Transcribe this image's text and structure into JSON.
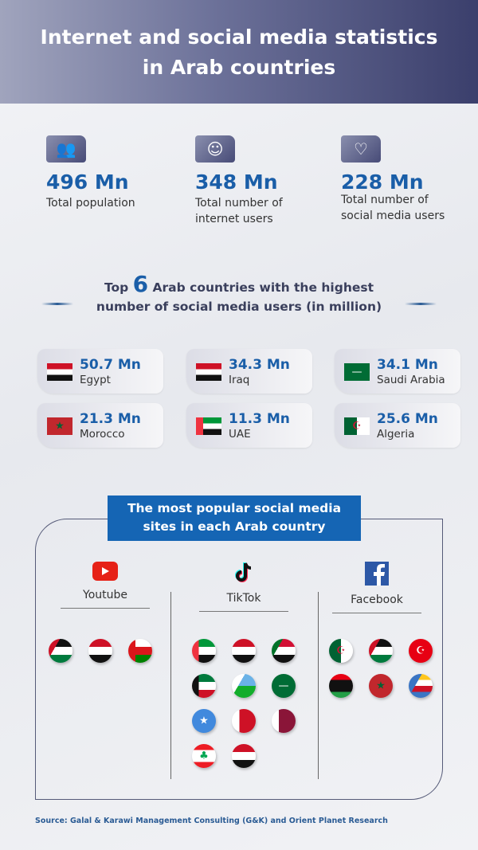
{
  "header": {
    "title_line1": "Internet and social media statistics",
    "title_line2": "in Arab countries"
  },
  "stats": [
    {
      "icon": "people-icon",
      "value": "496 Mn",
      "label_line1": "Total population",
      "label_line2": ""
    },
    {
      "icon": "laptop-user-icon",
      "value": "348 Mn",
      "label_line1": "Total number of",
      "label_line2": "internet users"
    },
    {
      "icon": "phone-like-icon",
      "value": "228 Mn",
      "label_line1": "Total number of",
      "label_line2": "social media users"
    }
  ],
  "top6": {
    "prefix": "Top",
    "number": "6",
    "line1_rest": "Arab countries with the highest",
    "line2": "number of social media users (in million)"
  },
  "countries": [
    {
      "flag": "egypt",
      "value": "50.7 Mn",
      "name": "Egypt"
    },
    {
      "flag": "iraq",
      "value": "34.3 Mn",
      "name": "Iraq"
    },
    {
      "flag": "saudi-arabia",
      "value": "34.1 Mn",
      "name": "Saudi Arabia"
    },
    {
      "flag": "morocco",
      "value": "21.3 Mn",
      "name": "Morocco"
    },
    {
      "flag": "uae",
      "value": "11.3 Mn",
      "name": "UAE"
    },
    {
      "flag": "algeria",
      "value": "25.6 Mn",
      "name": "Algeria"
    }
  ],
  "popular": {
    "title_line1": "The most popular social media",
    "title_line2": "sites in each Arab country",
    "platforms": [
      {
        "name": "Youtube",
        "icon": "youtube-icon",
        "flags": [
          "jordan",
          "egypt",
          "oman"
        ]
      },
      {
        "name": "TikTok",
        "icon": "tiktok-icon",
        "flags": [
          "uae",
          "iraq",
          "sudan",
          "kuwait",
          "djibouti",
          "saudi-arabia",
          "somalia",
          "bahrain",
          "qatar",
          "lebanon",
          "yemen"
        ]
      },
      {
        "name": "Facebook",
        "icon": "facebook-icon",
        "flags": [
          "algeria",
          "palestine",
          "tunisia",
          "libya",
          "morocco",
          "comoros"
        ]
      }
    ]
  },
  "source": "Source: Galal & Karawi Management Consulting (G&K) and Orient Planet Research",
  "colors": {
    "accent": "#1a5ea8",
    "banner": "#1565b4",
    "header_dark": "#3b3f6c"
  }
}
